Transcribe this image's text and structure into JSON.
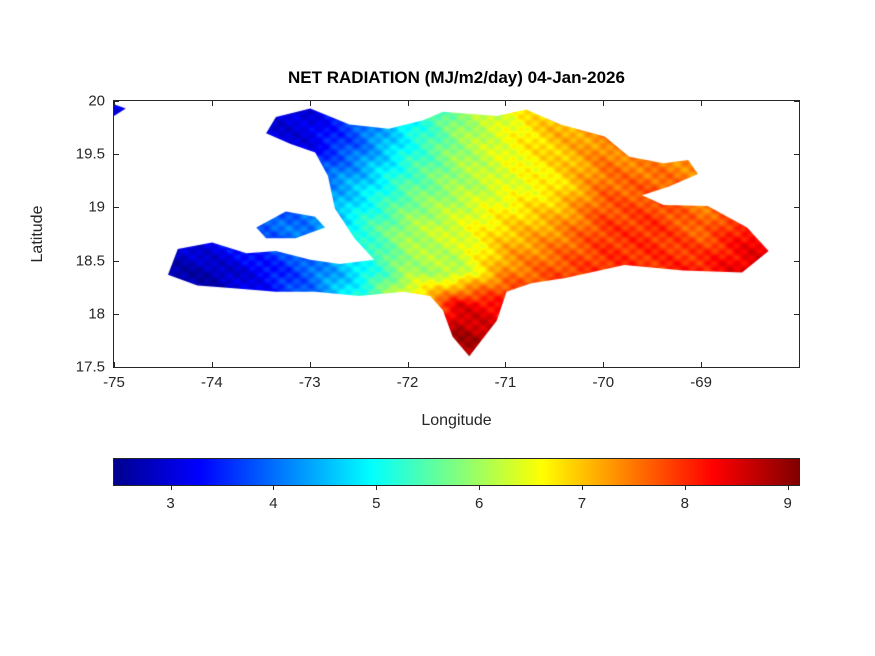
{
  "chart": {
    "title": "NET RADIATION (MJ/m2/day) 04-Jan-2026",
    "xlabel": "Longitude",
    "ylabel": "Latitude"
  },
  "chart_data": {
    "type": "heatmap",
    "title": "NET RADIATION (MJ/m2/day) 04-Jan-2026",
    "xlabel": "Longitude",
    "ylabel": "Latitude",
    "units": "MJ/m2/day",
    "xlim": [
      -75,
      -68
    ],
    "ylim": [
      17.5,
      20
    ],
    "x_ticks": [
      -75,
      -74,
      -73,
      -72,
      -71,
      -70,
      -69
    ],
    "y_ticks": [
      17.5,
      18,
      18.5,
      19,
      19.5,
      20
    ],
    "caxis": [
      2.44,
      9.12
    ],
    "colorbar": {
      "orientation": "horizontal",
      "ticks": [
        3,
        4,
        5,
        6,
        7,
        8,
        9
      ]
    },
    "colormap": [
      [
        0.0,
        [
          0,
          0,
          143
        ]
      ],
      [
        0.125,
        [
          0,
          0,
          255
        ]
      ],
      [
        0.375,
        [
          0,
          255,
          255
        ]
      ],
      [
        0.625,
        [
          255,
          255,
          0
        ]
      ],
      [
        0.875,
        [
          255,
          0,
          0
        ]
      ],
      [
        1.0,
        [
          128,
          0,
          0
        ]
      ]
    ],
    "grid": {
      "lons": [
        -74.5,
        -74,
        -73.5,
        -73,
        -72.5,
        -72,
        -71.5,
        -71,
        -70.5,
        -70,
        -69.5,
        -69,
        -68.5
      ],
      "lats": [
        20,
        19.6,
        19.2,
        18.8,
        18.4,
        18.1,
        17.8,
        17.5
      ],
      "values": [
        [
          3.2,
          3.2,
          3.0,
          3.0,
          3.8,
          4.8,
          5.8,
          6.4,
          7.2,
          7.4,
          7.2,
          7.2,
          7.4
        ],
        [
          3.2,
          3.1,
          2.9,
          3.1,
          3.9,
          5.0,
          5.9,
          6.5,
          7.0,
          7.4,
          7.2,
          7.4,
          7.5
        ],
        [
          3.2,
          3.3,
          3.5,
          3.9,
          4.6,
          5.5,
          6.0,
          6.4,
          6.7,
          7.6,
          7.7,
          7.4,
          7.9
        ],
        [
          3.0,
          3.4,
          3.9,
          4.1,
          5.2,
          6.0,
          6.4,
          6.9,
          7.3,
          7.9,
          8.0,
          7.6,
          8.3
        ],
        [
          2.6,
          2.7,
          3.2,
          3.9,
          4.8,
          6.0,
          6.1,
          7.4,
          7.8,
          8.0,
          8.0,
          8.2,
          8.5
        ],
        [
          2.6,
          2.7,
          3.3,
          4.0,
          5.3,
          6.8,
          8.4,
          8.2,
          8.0,
          8.0,
          8.0,
          8.2,
          8.5
        ],
        [
          2.6,
          2.8,
          3.3,
          4.1,
          5.6,
          7.4,
          8.9,
          8.6,
          8.1,
          8.0,
          8.0,
          8.2,
          8.5
        ],
        [
          2.6,
          2.8,
          3.4,
          4.2,
          5.8,
          7.6,
          9.0,
          8.8,
          8.2,
          8.0,
          8.0,
          8.2,
          8.5
        ]
      ]
    },
    "polygons": {
      "hispaniola": [
        [
          -73.45,
          19.7
        ],
        [
          -73.35,
          19.85
        ],
        [
          -73.0,
          19.93
        ],
        [
          -72.6,
          19.78
        ],
        [
          -72.2,
          19.74
        ],
        [
          -71.85,
          19.82
        ],
        [
          -71.65,
          19.9
        ],
        [
          -71.1,
          19.86
        ],
        [
          -70.8,
          19.92
        ],
        [
          -70.45,
          19.78
        ],
        [
          -70.0,
          19.67
        ],
        [
          -69.75,
          19.48
        ],
        [
          -69.4,
          19.42
        ],
        [
          -69.15,
          19.45
        ],
        [
          -69.05,
          19.32
        ],
        [
          -69.35,
          19.2
        ],
        [
          -69.62,
          19.12
        ],
        [
          -69.4,
          19.03
        ],
        [
          -68.95,
          19.02
        ],
        [
          -68.55,
          18.82
        ],
        [
          -68.33,
          18.6
        ],
        [
          -68.6,
          18.4
        ],
        [
          -69.2,
          18.42
        ],
        [
          -69.8,
          18.47
        ],
        [
          -70.4,
          18.35
        ],
        [
          -70.75,
          18.3
        ],
        [
          -71.0,
          18.22
        ],
        [
          -71.1,
          17.95
        ],
        [
          -71.38,
          17.62
        ],
        [
          -71.55,
          17.8
        ],
        [
          -71.65,
          18.05
        ],
        [
          -71.78,
          18.18
        ],
        [
          -72.05,
          18.22
        ],
        [
          -72.5,
          18.18
        ],
        [
          -72.95,
          18.22
        ],
        [
          -73.35,
          18.22
        ],
        [
          -73.75,
          18.25
        ],
        [
          -74.15,
          18.28
        ],
        [
          -74.45,
          18.38
        ],
        [
          -74.35,
          18.62
        ],
        [
          -74.0,
          18.68
        ],
        [
          -73.65,
          18.58
        ],
        [
          -73.35,
          18.6
        ],
        [
          -73.0,
          18.52
        ],
        [
          -72.7,
          18.48
        ],
        [
          -72.35,
          18.52
        ],
        [
          -72.55,
          18.72
        ],
        [
          -72.75,
          19.0
        ],
        [
          -72.82,
          19.3
        ],
        [
          -72.95,
          19.52
        ],
        [
          -73.2,
          19.6
        ]
      ],
      "gonave_island": [
        [
          -73.55,
          18.82
        ],
        [
          -73.25,
          18.97
        ],
        [
          -72.95,
          18.92
        ],
        [
          -72.85,
          18.82
        ],
        [
          -73.15,
          18.72
        ],
        [
          -73.45,
          18.72
        ]
      ],
      "northwest_islet": [
        [
          -75.0,
          19.97
        ],
        [
          -74.88,
          19.93
        ],
        [
          -75.0,
          19.86
        ]
      ]
    }
  }
}
